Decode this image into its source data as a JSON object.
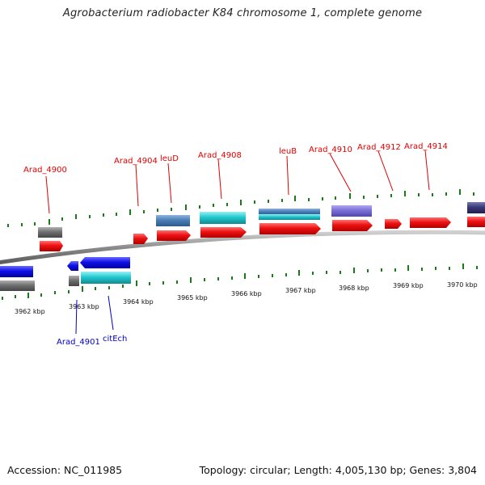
{
  "title": "Agrobacterium radiobacter K84 chromosome 1, complete genome",
  "accession": "Accession: NC_011985",
  "summary": "Topology: circular; Length: 4,005,130 bp; Genes: 3,804",
  "kbp_labels": [
    "3962 kbp",
    "3963 kbp",
    "3964 kbp",
    "3965 kbp",
    "3966 kbp",
    "3967 kbp",
    "3968 kbp",
    "3969 kbp",
    "3970 kbp"
  ],
  "top_labels": [
    "Arad_4900",
    "Arad_4904",
    "leuD",
    "Arad_4908",
    "leuB",
    "Arad_4910",
    "Arad_4912",
    "Arad_4914"
  ],
  "bottom_labels": [
    "Arad_4901",
    "citEch"
  ],
  "colors": {
    "cds": "#ee1111",
    "gene_grey": "#707070",
    "gene_steelblue": "#4a7fb8",
    "gene_cyan": "#22c8d0",
    "gene_lavender": "#7b6fd8",
    "gene_navy": "#3a3a7a",
    "reverse_cds": "#1010e8",
    "backbone": "#888888",
    "ticks": "#1a7a1a",
    "label_top": "#e00000",
    "label_bottom": "#0000c8"
  }
}
